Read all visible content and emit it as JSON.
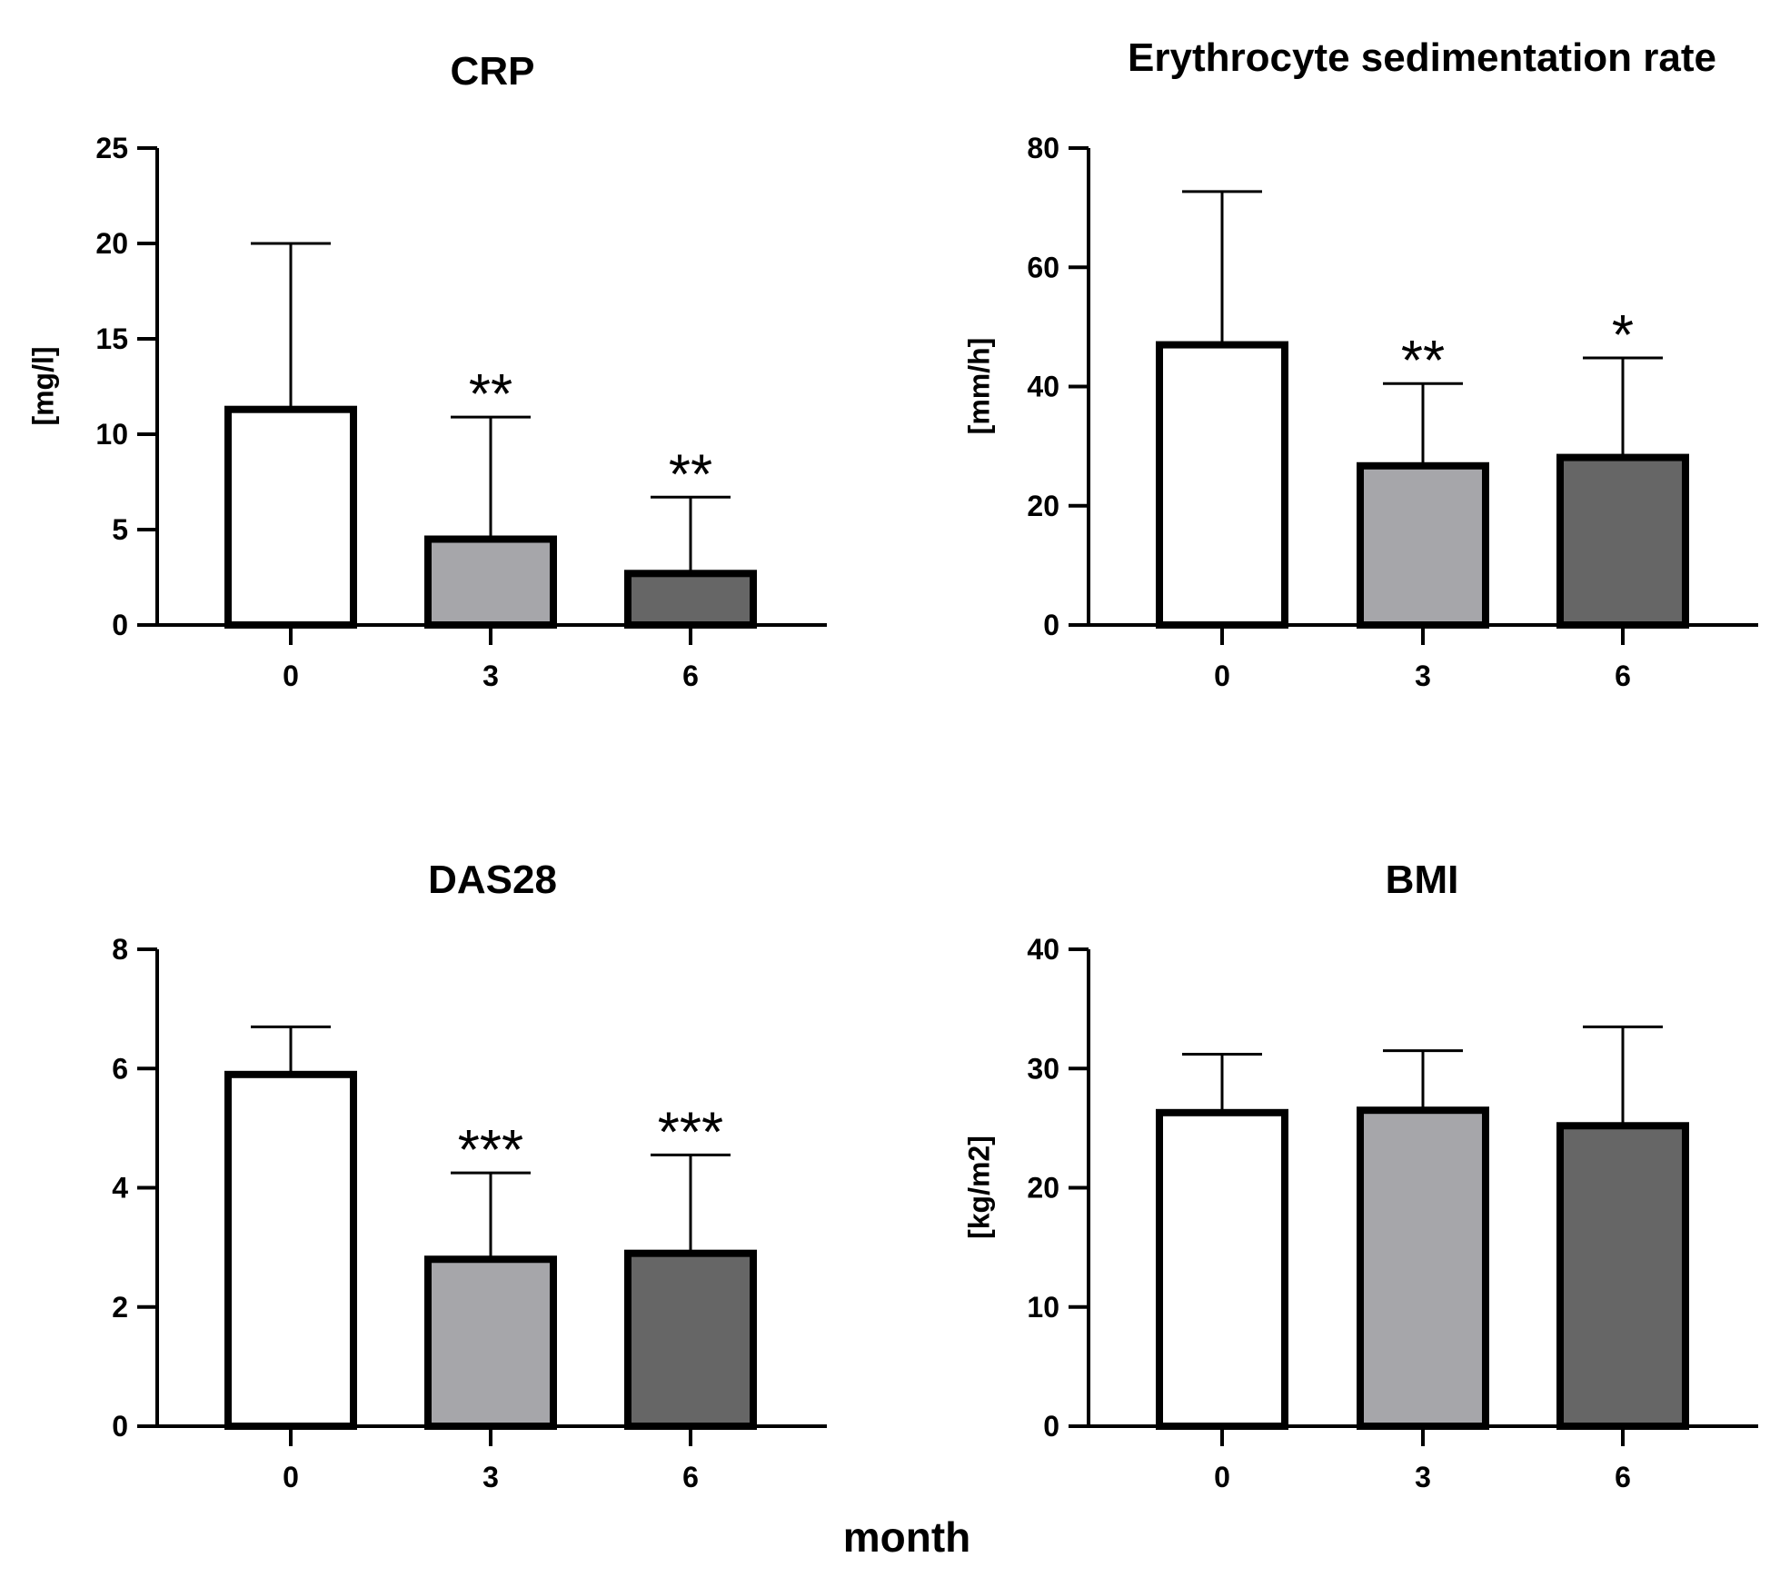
{
  "figure": {
    "xlabel": "month"
  },
  "chart_data": [
    {
      "type": "bar",
      "title": "CRP",
      "ylabel": "[mg/l]",
      "xlabel": "month",
      "categories": [
        "0",
        "3",
        "6"
      ],
      "values": [
        11.3,
        4.5,
        2.7
      ],
      "error_upper": [
        20.0,
        10.9,
        6.7
      ],
      "significance": [
        "",
        "**",
        "**"
      ],
      "ylim": [
        0,
        25
      ],
      "yticks": [
        0,
        5,
        10,
        15,
        20,
        25
      ],
      "ytick_labels": [
        "0",
        "5",
        "10",
        "15",
        "20",
        "25"
      ],
      "bar_colors": [
        "#ffffff",
        "#a6a6aa",
        "#666666"
      ]
    },
    {
      "type": "bar",
      "title": "Erythrocyte sedimentation rate",
      "ylabel": "[mm/h]",
      "xlabel": "month",
      "categories": [
        "0",
        "3",
        "6"
      ],
      "values": [
        47,
        26.7,
        28.1
      ],
      "error_upper": [
        72.7,
        40.5,
        44.8
      ],
      "significance": [
        "",
        "**",
        "*"
      ],
      "ylim": [
        0,
        80
      ],
      "yticks": [
        0,
        20,
        40,
        60,
        80
      ],
      "ytick_labels": [
        "0",
        "20",
        "40",
        "60",
        "80"
      ],
      "bar_colors": [
        "#ffffff",
        "#a6a6aa",
        "#666666"
      ]
    },
    {
      "type": "bar",
      "title": "DAS28",
      "ylabel": "",
      "xlabel": "month",
      "categories": [
        "0",
        "3",
        "6"
      ],
      "values": [
        5.9,
        2.8,
        2.9
      ],
      "error_upper": [
        6.7,
        4.25,
        4.55
      ],
      "significance": [
        "",
        "***",
        "***"
      ],
      "ylim": [
        0,
        8
      ],
      "yticks": [
        0,
        2,
        4,
        6,
        8
      ],
      "ytick_labels": [
        "0",
        "2",
        "4",
        "6",
        "8"
      ],
      "bar_colors": [
        "#ffffff",
        "#a6a6aa",
        "#666666"
      ]
    },
    {
      "type": "bar",
      "title": "BMI",
      "ylabel": "[kg/m2]",
      "xlabel": "month",
      "categories": [
        "0",
        "3",
        "6"
      ],
      "values": [
        26.3,
        26.5,
        25.2
      ],
      "error_upper": [
        31.2,
        31.5,
        33.5
      ],
      "significance": [
        "",
        "",
        ""
      ],
      "ylim": [
        0,
        40
      ],
      "yticks": [
        0,
        10,
        20,
        30,
        40
      ],
      "ytick_labels": [
        "0",
        "10",
        "20",
        "30",
        "40"
      ],
      "bar_colors": [
        "#ffffff",
        "#a6a6aa",
        "#666666"
      ]
    }
  ]
}
